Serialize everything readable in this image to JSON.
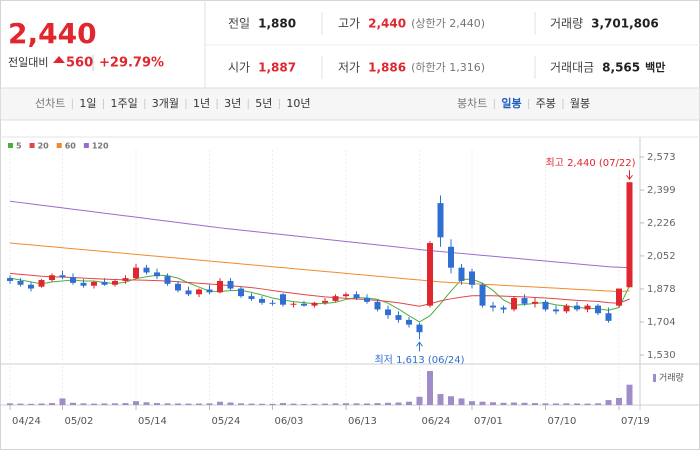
{
  "quote": {
    "price": "2,440",
    "change_label": "전일대비",
    "change": "560",
    "change_pct": "+29.79%"
  },
  "stats": [
    {
      "label": "전일",
      "value": "1,880"
    },
    {
      "label": "고가",
      "value": "2,440",
      "color": "#e0262f",
      "extra": "(상한가 2,440)"
    },
    {
      "label": "거래량",
      "value": "3,701,806"
    },
    {
      "label": "시가",
      "value": "1,887",
      "color": "#e0262f"
    },
    {
      "label": "저가",
      "value": "1,886",
      "color": "#e0262f",
      "extra": "(하한가 1,316)"
    },
    {
      "label": "거래대금",
      "value": "8,565",
      "extra": "백만"
    }
  ],
  "tabs": {
    "left": [
      "선차트",
      "1일",
      "1주일",
      "3개월",
      "1년",
      "3년",
      "5년",
      "10년"
    ],
    "right_label": "봉차트",
    "right": [
      "일봉",
      "주봉",
      "월봉"
    ],
    "selected": 0
  },
  "chart_data": {
    "type": "candlestick",
    "categories": [
      "04/24",
      null,
      null,
      null,
      null,
      "05/02",
      null,
      null,
      null,
      null,
      null,
      null,
      "05/14",
      null,
      null,
      null,
      null,
      null,
      null,
      "05/24",
      null,
      null,
      null,
      null,
      null,
      "06/03",
      null,
      null,
      null,
      null,
      null,
      null,
      "06/13",
      null,
      null,
      null,
      null,
      null,
      null,
      "06/24",
      null,
      null,
      null,
      null,
      "07/01",
      null,
      null,
      null,
      null,
      null,
      null,
      "07/10",
      null,
      null,
      null,
      null,
      null,
      null,
      "07/19",
      null
    ],
    "open": [
      1935,
      1920,
      1900,
      1890,
      1925,
      1950,
      1940,
      1910,
      1895,
      1915,
      1900,
      1920,
      1935,
      1990,
      1965,
      1945,
      1905,
      1870,
      1850,
      1875,
      1860,
      1920,
      1880,
      1840,
      1825,
      1805,
      1850,
      1795,
      1800,
      1790,
      1805,
      1815,
      1840,
      1850,
      1830,
      1810,
      1770,
      1740,
      1715,
      1690,
      1790,
      2330,
      2100,
      1990,
      1970,
      1900,
      1790,
      1780,
      1770,
      1830,
      1800,
      1810,
      1770,
      1760,
      1790,
      1770,
      1790,
      1750,
      1790,
      1887
    ],
    "high": [
      1950,
      1935,
      1915,
      1930,
      1960,
      1975,
      1960,
      1930,
      1920,
      1935,
      1930,
      1950,
      2010,
      2005,
      1985,
      1960,
      1920,
      1890,
      1880,
      1900,
      1935,
      1935,
      1890,
      1855,
      1840,
      1820,
      1855,
      1810,
      1815,
      1810,
      1830,
      1850,
      1860,
      1865,
      1850,
      1820,
      1790,
      1760,
      1730,
      1700,
      2130,
      2370,
      2140,
      2010,
      1985,
      1910,
      1810,
      1790,
      1840,
      1850,
      1830,
      1820,
      1790,
      1800,
      1810,
      1800,
      1800,
      1780,
      1880,
      2440
    ],
    "low": [
      1905,
      1890,
      1865,
      1885,
      1915,
      1930,
      1900,
      1885,
      1880,
      1895,
      1890,
      1905,
      1930,
      1955,
      1930,
      1895,
      1860,
      1840,
      1835,
      1850,
      1855,
      1870,
      1830,
      1815,
      1795,
      1790,
      1785,
      1780,
      1785,
      1780,
      1795,
      1810,
      1830,
      1820,
      1800,
      1760,
      1720,
      1700,
      1675,
      1613,
      1780,
      2100,
      1960,
      1900,
      1880,
      1780,
      1760,
      1750,
      1760,
      1790,
      1780,
      1760,
      1745,
      1750,
      1760,
      1755,
      1740,
      1700,
      1780,
      1886
    ],
    "close": [
      1920,
      1900,
      1880,
      1925,
      1950,
      1940,
      1910,
      1895,
      1915,
      1900,
      1920,
      1935,
      1990,
      1965,
      1945,
      1905,
      1870,
      1850,
      1875,
      1860,
      1920,
      1880,
      1840,
      1825,
      1805,
      1800,
      1795,
      1800,
      1790,
      1805,
      1815,
      1840,
      1850,
      1830,
      1810,
      1770,
      1740,
      1715,
      1690,
      1650,
      2120,
      2150,
      1990,
      1920,
      1900,
      1790,
      1780,
      1770,
      1830,
      1800,
      1810,
      1770,
      1760,
      1790,
      1770,
      1790,
      1750,
      1710,
      1880,
      2440
    ],
    "up_color": "#e0262f",
    "down_color": "#2f6fd1",
    "ylim": [
      1530,
      2573
    ],
    "yticks": [
      {
        "value": 2573,
        "label": "2,573"
      },
      {
        "value": 2399,
        "label": "2,399"
      },
      {
        "value": 2226,
        "label": "2,226"
      },
      {
        "value": 2052,
        "label": "2,052"
      },
      {
        "value": 1878,
        "label": "1,878"
      },
      {
        "value": 1704,
        "label": "1,704"
      },
      {
        "value": 1530,
        "label": "1,530"
      }
    ],
    "lines": [
      {
        "name": "5",
        "color": "#4caf3c",
        "values": [
          1935,
          1925,
          1915,
          1905,
          1915,
          1920,
          1925,
          1920,
          1920,
          1912,
          1906,
          1913,
          1932,
          1942,
          1951,
          1948,
          1935,
          1910,
          1888,
          1866,
          1865,
          1869,
          1871,
          1860,
          1846,
          1830,
          1820,
          1811,
          1806,
          1800,
          1801,
          1808,
          1822,
          1832,
          1830,
          1823,
          1803,
          1772,
          1737,
          1704,
          1737,
          1800,
          1867,
          1928,
          1930,
          1908,
          1870,
          1820,
          1792,
          1796,
          1802,
          1806,
          1794,
          1788,
          1780,
          1777,
          1773,
          1766,
          1780,
          1894
        ]
      },
      {
        "name": "20",
        "color": "#e04848",
        "values": [
          1960,
          1955,
          1950,
          1945,
          1942,
          1940,
          1938,
          1935,
          1932,
          1930,
          1928,
          1926,
          1925,
          1924,
          1922,
          1920,
          1916,
          1912,
          1908,
          1904,
          1900,
          1895,
          1890,
          1885,
          1878,
          1870,
          1862,
          1855,
          1848,
          1842,
          1836,
          1832,
          1828,
          1825,
          1822,
          1818,
          1812,
          1805,
          1796,
          1787,
          1800,
          1815,
          1826,
          1835,
          1842,
          1843,
          1842,
          1840,
          1838,
          1836,
          1833,
          1830,
          1826,
          1822,
          1818,
          1815,
          1812,
          1806,
          1802,
          1825
        ]
      },
      {
        "name": "60",
        "color": "#f08c28",
        "values": [
          2120,
          2115,
          2110,
          2105,
          2100,
          2095,
          2090,
          2085,
          2080,
          2075,
          2070,
          2065,
          2060,
          2055,
          2050,
          2045,
          2040,
          2035,
          2030,
          2025,
          2020,
          2015,
          2010,
          2005,
          2000,
          1995,
          1990,
          1985,
          1980,
          1975,
          1970,
          1965,
          1960,
          1955,
          1950,
          1945,
          1940,
          1935,
          1930,
          1925,
          1920,
          1915,
          1912,
          1909,
          1906,
          1903,
          1900,
          1897,
          1894,
          1891,
          1888,
          1885,
          1882,
          1879,
          1876,
          1873,
          1870,
          1867,
          1864,
          1868
        ]
      },
      {
        "name": "120",
        "color": "#9b6bc8",
        "values": [
          2340,
          2333,
          2326,
          2319,
          2312,
          2305,
          2298,
          2291,
          2284,
          2277,
          2270,
          2263,
          2256,
          2249,
          2242,
          2235,
          2228,
          2221,
          2214,
          2207,
          2200,
          2194,
          2188,
          2182,
          2176,
          2170,
          2164,
          2158,
          2152,
          2146,
          2140,
          2134,
          2128,
          2122,
          2116,
          2110,
          2104,
          2098,
          2092,
          2086,
          2080,
          2075,
          2070,
          2065,
          2060,
          2055,
          2050,
          2045,
          2040,
          2035,
          2030,
          2025,
          2020,
          2015,
          2010,
          2005,
          2000,
          1995,
          1992,
          1990
        ]
      }
    ],
    "volume": {
      "name": "거래량",
      "color": "#a08cc8",
      "values": [
        300000,
        250000,
        220000,
        280000,
        350000,
        1200000,
        400000,
        300000,
        250000,
        280000,
        300000,
        350000,
        700000,
        500000,
        350000,
        300000,
        280000,
        250000,
        260000,
        300000,
        600000,
        450000,
        300000,
        250000,
        220000,
        200000,
        350000,
        250000,
        200000,
        220000,
        250000,
        300000,
        320000,
        300000,
        280000,
        350000,
        400000,
        450000,
        600000,
        1500000,
        6200000,
        2000000,
        1600000,
        1200000,
        700000,
        600000,
        500000,
        400000,
        450000,
        400000,
        350000,
        300000,
        280000,
        300000,
        280000,
        250000,
        300000,
        900000,
        1300000,
        3701806
      ]
    },
    "annotations": {
      "high": "최고 2,440 (07/22)",
      "low": "최저 1,613 (06/24)"
    }
  }
}
